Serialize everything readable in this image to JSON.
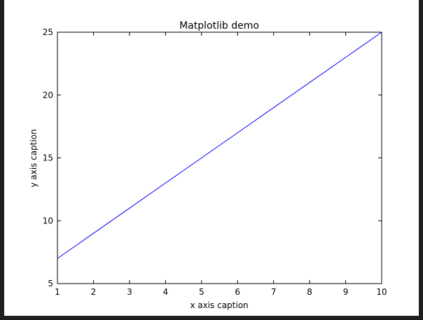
{
  "chart_data": {
    "type": "line",
    "title": "Matplotlib demo",
    "xlabel": "x axis caption",
    "ylabel": "y axis caption",
    "xlim": [
      1,
      10
    ],
    "ylim": [
      5,
      25
    ],
    "xticks": [
      1,
      2,
      3,
      4,
      5,
      6,
      7,
      8,
      9,
      10
    ],
    "yticks": [
      5,
      10,
      15,
      20,
      25
    ],
    "grid": false,
    "series": [
      {
        "color": "#0000ff",
        "x": [
          1,
          2,
          3,
          4,
          5,
          6,
          7,
          8,
          9,
          10
        ],
        "y": [
          7,
          9,
          11,
          13,
          15,
          17,
          19,
          21,
          23,
          25
        ]
      }
    ]
  }
}
